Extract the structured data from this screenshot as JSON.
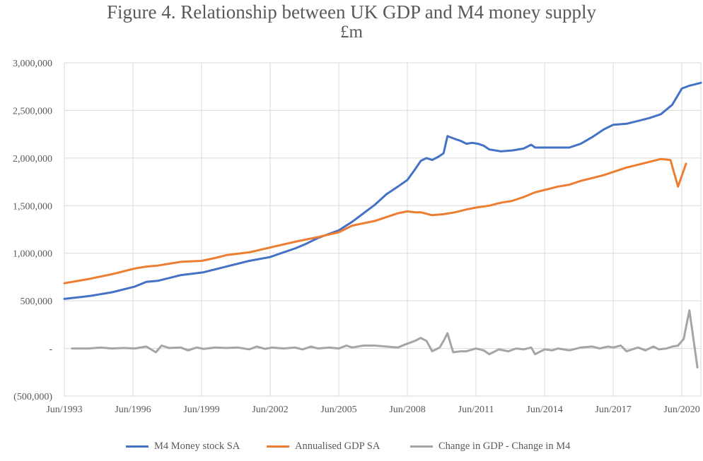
{
  "chart_data": {
    "type": "line",
    "title": "Figure 4. Relationship between UK GDP and M4 money supply",
    "subtitle": "£m",
    "xlabel": "",
    "ylabel": "",
    "ylim": [
      -500000,
      3000000
    ],
    "grid": true,
    "legend_position": "bottom",
    "x_tick_labels": [
      "Jun/1993",
      "Jun/1996",
      "Jun/1999",
      "Jun/2002",
      "Jun/2005",
      "Jun/2008",
      "Jun/2011",
      "Jun/2014",
      "Jun/2017",
      "Jun/2020"
    ],
    "y_tick_labels": [
      "(500,000)",
      "-",
      "500,000",
      "1,000,000",
      "1,500,000",
      "2,000,000",
      "2,500,000",
      "3,000,000"
    ],
    "y_tick_values": [
      -500000,
      0,
      500000,
      1000000,
      1500000,
      2000000,
      2500000,
      3000000
    ],
    "x_start_year": 1993.417,
    "x_end_year": 2021.25,
    "series": [
      {
        "name": "M4 Money stock SA",
        "color": "#4472C4",
        "points": [
          [
            1993.417,
            520000
          ],
          [
            1994.5,
            550000
          ],
          [
            1995.5,
            590000
          ],
          [
            1996.5,
            650000
          ],
          [
            1997.0,
            700000
          ],
          [
            1997.5,
            710000
          ],
          [
            1998.0,
            740000
          ],
          [
            1998.5,
            770000
          ],
          [
            1999.5,
            800000
          ],
          [
            2000.5,
            860000
          ],
          [
            2001.5,
            920000
          ],
          [
            2002.417,
            960000
          ],
          [
            2003.0,
            1010000
          ],
          [
            2003.5,
            1050000
          ],
          [
            2004.0,
            1100000
          ],
          [
            2004.5,
            1160000
          ],
          [
            2005.417,
            1240000
          ],
          [
            2006.0,
            1330000
          ],
          [
            2006.5,
            1420000
          ],
          [
            2007.0,
            1510000
          ],
          [
            2007.5,
            1620000
          ],
          [
            2008.0,
            1700000
          ],
          [
            2008.417,
            1770000
          ],
          [
            2008.75,
            1880000
          ],
          [
            2009.0,
            1970000
          ],
          [
            2009.25,
            2000000
          ],
          [
            2009.5,
            1980000
          ],
          [
            2009.75,
            2010000
          ],
          [
            2010.0,
            2050000
          ],
          [
            2010.17,
            2230000
          ],
          [
            2010.5,
            2200000
          ],
          [
            2010.75,
            2180000
          ],
          [
            2011.0,
            2150000
          ],
          [
            2011.25,
            2160000
          ],
          [
            2011.5,
            2150000
          ],
          [
            2011.75,
            2130000
          ],
          [
            2012.0,
            2090000
          ],
          [
            2012.5,
            2070000
          ],
          [
            2013.0,
            2080000
          ],
          [
            2013.5,
            2100000
          ],
          [
            2013.83,
            2140000
          ],
          [
            2014.0,
            2110000
          ],
          [
            2014.5,
            2110000
          ],
          [
            2015.0,
            2110000
          ],
          [
            2015.5,
            2110000
          ],
          [
            2016.0,
            2150000
          ],
          [
            2016.5,
            2220000
          ],
          [
            2017.0,
            2300000
          ],
          [
            2017.417,
            2350000
          ],
          [
            2018.0,
            2360000
          ],
          [
            2018.5,
            2390000
          ],
          [
            2019.0,
            2420000
          ],
          [
            2019.5,
            2460000
          ],
          [
            2020.0,
            2560000
          ],
          [
            2020.417,
            2730000
          ],
          [
            2020.75,
            2760000
          ],
          [
            2021.25,
            2790000
          ]
        ]
      },
      {
        "name": "Annualised GDP SA",
        "color": "#ED7D31",
        "points": [
          [
            1993.417,
            685000
          ],
          [
            1994.5,
            730000
          ],
          [
            1995.5,
            780000
          ],
          [
            1996.5,
            840000
          ],
          [
            1997.0,
            860000
          ],
          [
            1997.5,
            870000
          ],
          [
            1998.5,
            910000
          ],
          [
            1999.417,
            920000
          ],
          [
            2000.0,
            950000
          ],
          [
            2000.5,
            980000
          ],
          [
            2001.5,
            1010000
          ],
          [
            2002.417,
            1060000
          ],
          [
            2003.5,
            1120000
          ],
          [
            2004.5,
            1170000
          ],
          [
            2005.417,
            1220000
          ],
          [
            2006.0,
            1290000
          ],
          [
            2007.0,
            1340000
          ],
          [
            2008.0,
            1420000
          ],
          [
            2008.417,
            1440000
          ],
          [
            2008.75,
            1430000
          ],
          [
            2009.0,
            1430000
          ],
          [
            2009.5,
            1400000
          ],
          [
            2010.0,
            1410000
          ],
          [
            2010.5,
            1430000
          ],
          [
            2011.0,
            1460000
          ],
          [
            2011.417,
            1480000
          ],
          [
            2012.0,
            1500000
          ],
          [
            2012.5,
            1530000
          ],
          [
            2013.0,
            1550000
          ],
          [
            2013.5,
            1590000
          ],
          [
            2014.0,
            1640000
          ],
          [
            2014.5,
            1670000
          ],
          [
            2015.0,
            1700000
          ],
          [
            2015.5,
            1720000
          ],
          [
            2016.0,
            1760000
          ],
          [
            2016.5,
            1790000
          ],
          [
            2017.0,
            1820000
          ],
          [
            2017.5,
            1860000
          ],
          [
            2018.0,
            1900000
          ],
          [
            2018.5,
            1930000
          ],
          [
            2019.0,
            1960000
          ],
          [
            2019.5,
            1990000
          ],
          [
            2019.92,
            1980000
          ],
          [
            2020.25,
            1700000
          ],
          [
            2020.6,
            1940000
          ]
        ]
      },
      {
        "name": "Change in GDP - Change in M4",
        "color": "#A5A5A5",
        "points": [
          [
            1993.75,
            0
          ],
          [
            1994.5,
            0
          ],
          [
            1995.0,
            10000
          ],
          [
            1995.5,
            0
          ],
          [
            1996.0,
            5000
          ],
          [
            1996.5,
            0
          ],
          [
            1997.0,
            20000
          ],
          [
            1997.42,
            -40000
          ],
          [
            1997.67,
            30000
          ],
          [
            1998.0,
            5000
          ],
          [
            1998.5,
            10000
          ],
          [
            1998.83,
            -20000
          ],
          [
            1999.2,
            10000
          ],
          [
            1999.5,
            -5000
          ],
          [
            2000.0,
            10000
          ],
          [
            2000.5,
            5000
          ],
          [
            2001.0,
            10000
          ],
          [
            2001.5,
            -10000
          ],
          [
            2001.83,
            20000
          ],
          [
            2002.2,
            -5000
          ],
          [
            2002.5,
            10000
          ],
          [
            2003.0,
            0
          ],
          [
            2003.5,
            10000
          ],
          [
            2003.83,
            -10000
          ],
          [
            2004.2,
            20000
          ],
          [
            2004.5,
            0
          ],
          [
            2005.0,
            10000
          ],
          [
            2005.417,
            0
          ],
          [
            2005.75,
            30000
          ],
          [
            2006.0,
            10000
          ],
          [
            2006.5,
            30000
          ],
          [
            2007.0,
            30000
          ],
          [
            2007.5,
            20000
          ],
          [
            2008.0,
            10000
          ],
          [
            2008.417,
            50000
          ],
          [
            2008.75,
            80000
          ],
          [
            2009.0,
            110000
          ],
          [
            2009.25,
            80000
          ],
          [
            2009.5,
            -30000
          ],
          [
            2009.83,
            10000
          ],
          [
            2010.0,
            80000
          ],
          [
            2010.17,
            160000
          ],
          [
            2010.417,
            -40000
          ],
          [
            2010.75,
            -30000
          ],
          [
            2011.0,
            -30000
          ],
          [
            2011.417,
            0
          ],
          [
            2011.75,
            -20000
          ],
          [
            2012.0,
            -60000
          ],
          [
            2012.417,
            -10000
          ],
          [
            2012.83,
            -30000
          ],
          [
            2013.17,
            0
          ],
          [
            2013.5,
            -10000
          ],
          [
            2013.83,
            10000
          ],
          [
            2014.0,
            -60000
          ],
          [
            2014.417,
            -10000
          ],
          [
            2014.75,
            -20000
          ],
          [
            2015.0,
            0
          ],
          [
            2015.5,
            -20000
          ],
          [
            2016.0,
            10000
          ],
          [
            2016.5,
            20000
          ],
          [
            2016.83,
            0
          ],
          [
            2017.17,
            20000
          ],
          [
            2017.417,
            10000
          ],
          [
            2017.75,
            30000
          ],
          [
            2018.0,
            -30000
          ],
          [
            2018.5,
            10000
          ],
          [
            2018.83,
            -20000
          ],
          [
            2019.17,
            20000
          ],
          [
            2019.417,
            -10000
          ],
          [
            2019.75,
            0
          ],
          [
            2020.0,
            20000
          ],
          [
            2020.25,
            30000
          ],
          [
            2020.5,
            100000
          ],
          [
            2020.75,
            400000
          ],
          [
            2021.1,
            -200000
          ]
        ]
      }
    ]
  }
}
